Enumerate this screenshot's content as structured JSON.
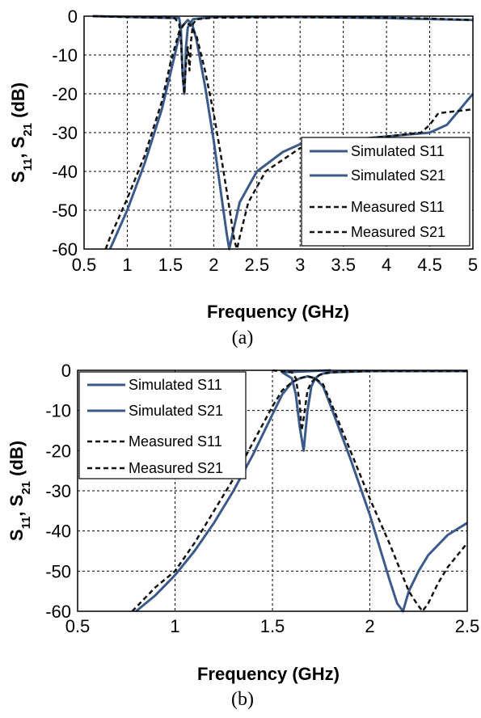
{
  "chart_data": [
    {
      "type": "line",
      "caption": "(a)",
      "xlabel": "Frequency (GHz)",
      "ylabel_main": "S",
      "ylabel_sub1": "11",
      "ylabel_mid": ", S",
      "ylabel_sub2": "21",
      "ylabel_unit": " (dB)",
      "xlim": [
        0.5,
        5
      ],
      "ylim": [
        -60,
        0
      ],
      "xticks": [
        "0.5",
        "1",
        "1.5",
        "2",
        "2.5",
        "3",
        "3.5",
        "4",
        "4.5",
        "5"
      ],
      "yticks": [
        "0",
        "-10",
        "-20",
        "-30",
        "-40",
        "-50",
        "-60"
      ],
      "grid": true,
      "legend_position": "bottom-right",
      "series": [
        {
          "name": "Simulated S11",
          "style": "solid",
          "color": "#3b5a8a",
          "x": [
            0.6,
            1.6,
            1.62,
            1.64,
            1.66,
            1.68,
            1.7,
            1.72,
            1.74,
            1.76,
            2.0,
            3.0,
            4.0,
            5.0
          ],
          "y": [
            0,
            -0.5,
            -3,
            -15,
            -20,
            -8,
            -3,
            -2,
            -1.5,
            -0.8,
            -0.2,
            -0.2,
            -0.5,
            -1
          ]
        },
        {
          "name": "Simulated S21",
          "style": "solid",
          "color": "#3b5a8a",
          "x": [
            0.8,
            1.0,
            1.2,
            1.4,
            1.55,
            1.62,
            1.66,
            1.7,
            1.75,
            1.8,
            1.9,
            2.0,
            2.1,
            2.15,
            2.18,
            2.22,
            2.3,
            2.5,
            2.8,
            3.0,
            3.5,
            4.0,
            4.5,
            4.7,
            5.0
          ],
          "y": [
            -60,
            -50,
            -38,
            -24,
            -10,
            -3,
            -2,
            -1,
            -2,
            -6,
            -18,
            -32,
            -48,
            -56,
            -60,
            -56,
            -48,
            -40,
            -35,
            -33,
            -32,
            -31,
            -30,
            -28,
            -20
          ]
        },
        {
          "name": "Measured S11",
          "style": "dashed",
          "color": "#111111",
          "x": [
            0.6,
            1.55,
            1.6,
            1.62,
            1.64,
            1.66,
            1.68,
            1.7,
            1.72,
            1.74,
            1.76,
            1.8,
            2.0,
            3.0,
            4.0,
            4.5,
            5.0
          ],
          "y": [
            0,
            -0.5,
            -2,
            -6,
            -15,
            -20,
            -12,
            -8,
            -14,
            -6,
            -2,
            -0.8,
            -0.4,
            -0.3,
            -0.4,
            -0.6,
            -1
          ]
        },
        {
          "name": "Measured S21",
          "style": "dashed",
          "color": "#111111",
          "x": [
            0.75,
            0.8,
            1.0,
            1.2,
            1.4,
            1.5,
            1.6,
            1.66,
            1.72,
            1.8,
            1.9,
            2.0,
            2.1,
            2.2,
            2.24,
            2.27,
            2.3,
            2.4,
            2.6,
            3.0,
            3.5,
            4.0,
            4.4,
            4.5,
            4.6,
            5.0
          ],
          "y": [
            -60,
            -57,
            -47,
            -36,
            -22,
            -12,
            -4,
            -2,
            -2,
            -5,
            -14,
            -25,
            -38,
            -52,
            -58,
            -60,
            -57,
            -48,
            -40,
            -34,
            -32,
            -31,
            -30,
            -28,
            -25,
            -24
          ]
        }
      ]
    },
    {
      "type": "line",
      "caption": "(b)",
      "xlabel": "Frequency (GHz)",
      "ylabel_main": "S",
      "ylabel_sub1": "11",
      "ylabel_mid": ", S",
      "ylabel_sub2": "21",
      "ylabel_unit": " (dB)",
      "xlim": [
        0.5,
        2.5
      ],
      "ylim": [
        -60,
        0
      ],
      "xticks": [
        "0.5",
        "1",
        "1.5",
        "2",
        "2.5"
      ],
      "yticks": [
        "0",
        "-10",
        "-20",
        "-30",
        "-40",
        "-50",
        "-60"
      ],
      "grid": true,
      "legend_position": "top-left",
      "series": [
        {
          "name": "Simulated S11",
          "style": "solid",
          "color": "#3b5a8a",
          "x": [
            1.8,
            1.55,
            1.6,
            1.62,
            1.64,
            1.66,
            1.68,
            1.7,
            1.72,
            1.74,
            1.76,
            1.8,
            2.0,
            2.5
          ],
          "y": [
            0,
            -0.5,
            -2,
            -6,
            -14,
            -20,
            -10,
            -4,
            -2,
            -1.2,
            -0.8,
            -0.5,
            -0.2,
            -0.2
          ]
        },
        {
          "name": "Simulated S21",
          "style": "solid",
          "color": "#3b5a8a",
          "x": [
            0.8,
            0.9,
            1.0,
            1.1,
            1.2,
            1.3,
            1.4,
            1.5,
            1.55,
            1.6,
            1.64,
            1.68,
            1.72,
            1.76,
            1.8,
            1.9,
            2.0,
            2.1,
            2.14,
            2.17,
            2.2,
            2.25,
            2.3,
            2.4,
            2.5
          ],
          "y": [
            -60,
            -56,
            -51,
            -45,
            -38,
            -30,
            -21,
            -11,
            -6,
            -3,
            -2,
            -1.5,
            -2,
            -4,
            -9,
            -22,
            -36,
            -52,
            -58,
            -60,
            -55,
            -50,
            -46,
            -41,
            -38
          ]
        },
        {
          "name": "Measured S11",
          "style": "dashed",
          "color": "#111111",
          "x": [
            1.5,
            1.6,
            1.62,
            1.64,
            1.65,
            1.66,
            1.68,
            1.7,
            1.72,
            1.74,
            1.76,
            1.8,
            1.9,
            2.0,
            2.5
          ],
          "y": [
            0,
            -0.5,
            -2,
            -8,
            -15,
            -12,
            -5,
            -3,
            -2,
            -1.2,
            -0.8,
            -0.5,
            -0.3,
            -0.2,
            -0.2
          ]
        },
        {
          "name": "Measured S21",
          "style": "dashed",
          "color": "#111111",
          "x": [
            0.78,
            0.9,
            1.0,
            1.1,
            1.2,
            1.3,
            1.4,
            1.5,
            1.55,
            1.6,
            1.64,
            1.68,
            1.72,
            1.76,
            1.8,
            1.9,
            2.0,
            2.1,
            2.2,
            2.24,
            2.27,
            2.3,
            2.35,
            2.4,
            2.5
          ],
          "y": [
            -60,
            -54,
            -50,
            -43,
            -35,
            -27,
            -18,
            -9,
            -5,
            -3,
            -2,
            -1.5,
            -2,
            -3.5,
            -8,
            -20,
            -32,
            -43,
            -55,
            -58,
            -60,
            -58,
            -53,
            -49,
            -43
          ]
        }
      ]
    }
  ]
}
